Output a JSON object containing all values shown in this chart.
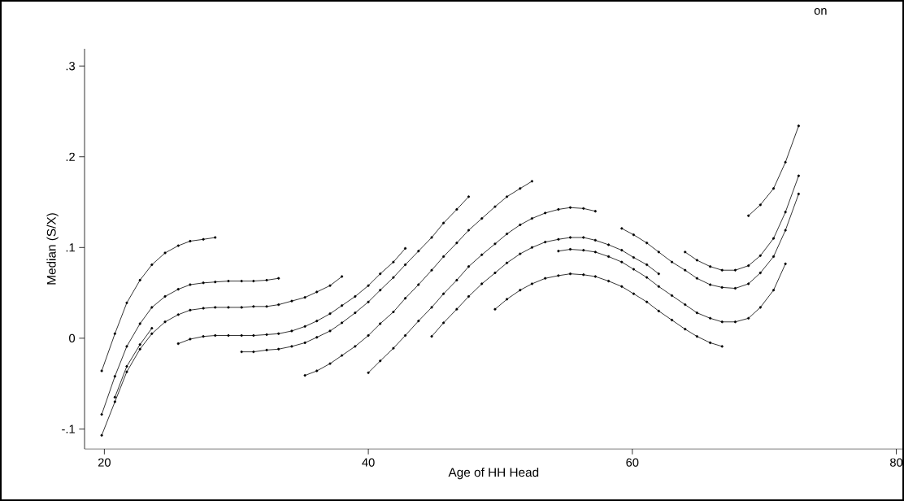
{
  "chart_data": {
    "type": "line",
    "xlabel": "Age of HH Head",
    "ylabel": "Median (S/X)",
    "annotations": [
      "on"
    ],
    "marker": "circle",
    "line_style": "solid",
    "xlim": [
      18.5,
      80.5
    ],
    "ylim": [
      -0.122,
      0.319
    ],
    "xticks": [
      20,
      40,
      60,
      80
    ],
    "yticks": [
      {
        "value": -0.1,
        "label": "-.1"
      },
      0,
      {
        "value": 0.1,
        "label": ".1"
      },
      {
        "value": 0.2,
        "label": ".2"
      },
      {
        "value": 0.3,
        "label": ".3"
      }
    ],
    "series": [
      {
        "color": "#000000",
        "x": [
          19.8,
          20.8,
          21.7,
          22.7,
          23.6,
          24.6,
          25.6,
          26.5,
          27.5,
          28.4
        ],
        "values": [
          -0.036,
          0.005,
          0.039,
          0.064,
          0.081,
          0.094,
          0.102,
          0.107,
          0.109,
          0.111
        ]
      },
      {
        "color": "#000000",
        "x": [
          19.8,
          20.8,
          21.7,
          22.7,
          23.6,
          24.6,
          25.6,
          26.5,
          27.5,
          28.4,
          29.4,
          30.4,
          31.3,
          32.3,
          33.2
        ],
        "values": [
          -0.084,
          -0.042,
          -0.009,
          0.016,
          0.034,
          0.046,
          0.054,
          0.059,
          0.061,
          0.062,
          0.063,
          0.063,
          0.063,
          0.064,
          0.066
        ]
      },
      {
        "color": "#000000",
        "x": [
          19.8,
          20.8,
          21.7,
          22.7,
          23.6,
          24.6,
          25.6,
          26.5,
          27.5,
          28.4,
          29.4,
          30.4,
          31.3,
          32.3,
          33.2,
          34.2,
          35.2,
          36.1,
          37.1,
          38.0
        ],
        "values": [
          -0.107,
          -0.07,
          -0.037,
          -0.012,
          0.005,
          0.018,
          0.026,
          0.031,
          0.033,
          0.034,
          0.034,
          0.034,
          0.035,
          0.035,
          0.037,
          0.041,
          0.045,
          0.051,
          0.058,
          0.068
        ]
      },
      {
        "color": "#000000",
        "x": [
          20.8,
          21.7,
          22.7,
          23.6
        ],
        "values": [
          -0.065,
          -0.031,
          -0.007,
          0.011
        ]
      },
      {
        "color": "#000000",
        "x": [
          25.6,
          26.5,
          27.5,
          28.4,
          29.4,
          30.4,
          31.3,
          32.3,
          33.2,
          34.2,
          35.2,
          36.1,
          37.1,
          38.0,
          39.0,
          40.0,
          40.9,
          41.9,
          42.8
        ],
        "values": [
          -0.006,
          -0.001,
          0.002,
          0.003,
          0.003,
          0.003,
          0.003,
          0.004,
          0.005,
          0.008,
          0.013,
          0.019,
          0.027,
          0.036,
          0.046,
          0.058,
          0.071,
          0.084,
          0.099
        ]
      },
      {
        "color": "#000000",
        "x": [
          30.4,
          31.3,
          32.3,
          33.2,
          34.2,
          35.2,
          36.1,
          37.1,
          38.0,
          39.0,
          40.0,
          40.9,
          41.9,
          42.8,
          43.8,
          44.8,
          45.7,
          46.7,
          47.6
        ],
        "values": [
          -0.015,
          -0.015,
          -0.013,
          -0.012,
          -0.009,
          -0.005,
          0.001,
          0.008,
          0.017,
          0.028,
          0.04,
          0.053,
          0.067,
          0.081,
          0.096,
          0.111,
          0.127,
          0.142,
          0.156
        ]
      },
      {
        "color": "#000000",
        "x": [
          35.2,
          36.1,
          37.1,
          38.0,
          39.0,
          40.0,
          40.9,
          41.9,
          42.8,
          43.8,
          44.8,
          45.7,
          46.7,
          47.6,
          48.6,
          49.6,
          50.5,
          51.5,
          52.4
        ],
        "values": [
          -0.041,
          -0.036,
          -0.028,
          -0.019,
          -0.009,
          0.003,
          0.016,
          0.029,
          0.044,
          0.059,
          0.075,
          0.09,
          0.105,
          0.119,
          0.132,
          0.145,
          0.156,
          0.165,
          0.173
        ]
      },
      {
        "color": "#000000",
        "x": [
          40.0,
          40.9,
          41.9,
          42.8,
          43.8,
          44.8,
          45.7,
          46.7,
          47.6,
          48.6,
          49.6,
          50.5,
          51.5,
          52.4,
          53.4,
          54.4,
          55.3,
          56.3,
          57.2
        ],
        "values": [
          -0.038,
          -0.025,
          -0.011,
          0.003,
          0.019,
          0.034,
          0.049,
          0.064,
          0.079,
          0.092,
          0.104,
          0.115,
          0.125,
          0.132,
          0.138,
          0.142,
          0.144,
          0.143,
          0.14
        ]
      },
      {
        "color": "#000000",
        "x": [
          44.8,
          45.7,
          46.7,
          47.6,
          48.6,
          49.6,
          50.5,
          51.5,
          52.4,
          53.4,
          54.4,
          55.3,
          56.3,
          57.2,
          58.2,
          59.2,
          60.1,
          61.1,
          62.0
        ],
        "values": [
          0.002,
          0.017,
          0.032,
          0.046,
          0.06,
          0.072,
          0.083,
          0.093,
          0.1,
          0.106,
          0.109,
          0.111,
          0.111,
          0.108,
          0.103,
          0.097,
          0.089,
          0.081,
          0.071
        ]
      },
      {
        "color": "#000000",
        "x": [
          49.6,
          50.5,
          51.5,
          52.4,
          53.4,
          54.4,
          55.3,
          56.3,
          57.2,
          58.2,
          59.2,
          60.1,
          61.1,
          62.0,
          63.0,
          64.0,
          64.9,
          65.9,
          66.8
        ],
        "values": [
          0.032,
          0.043,
          0.053,
          0.06,
          0.066,
          0.069,
          0.071,
          0.07,
          0.068,
          0.063,
          0.057,
          0.049,
          0.04,
          0.03,
          0.02,
          0.01,
          0.002,
          -0.005,
          -0.009
        ]
      },
      {
        "color": "#000000",
        "x": [
          54.4,
          55.3,
          56.3,
          57.2,
          58.2,
          59.2,
          60.1,
          61.1,
          62.0,
          63.0,
          64.0,
          64.9,
          65.9,
          66.8,
          67.8,
          68.8,
          69.7,
          70.7,
          71.6
        ],
        "values": [
          0.096,
          0.098,
          0.097,
          0.095,
          0.09,
          0.084,
          0.076,
          0.067,
          0.057,
          0.047,
          0.037,
          0.028,
          0.022,
          0.018,
          0.018,
          0.022,
          0.034,
          0.053,
          0.082
        ]
      },
      {
        "color": "#000000",
        "x": [
          59.2,
          60.1,
          61.1,
          62.0,
          63.0,
          64.0,
          64.9,
          65.9,
          66.8,
          67.8,
          68.8,
          69.7,
          70.7,
          71.6,
          72.6
        ],
        "values": [
          0.121,
          0.114,
          0.105,
          0.095,
          0.084,
          0.075,
          0.066,
          0.059,
          0.056,
          0.055,
          0.06,
          0.072,
          0.09,
          0.119,
          0.159
        ]
      },
      {
        "color": "#000000",
        "x": [
          64.0,
          64.9,
          65.9,
          66.8,
          67.8,
          68.8,
          69.7,
          70.7,
          71.6,
          72.6
        ],
        "values": [
          0.095,
          0.086,
          0.079,
          0.075,
          0.075,
          0.08,
          0.091,
          0.11,
          0.139,
          0.179
        ]
      },
      {
        "color": "#000000",
        "x": [
          68.8,
          69.7,
          70.7,
          71.6,
          72.6
        ],
        "values": [
          0.135,
          0.147,
          0.165,
          0.194,
          0.234
        ]
      }
    ]
  }
}
